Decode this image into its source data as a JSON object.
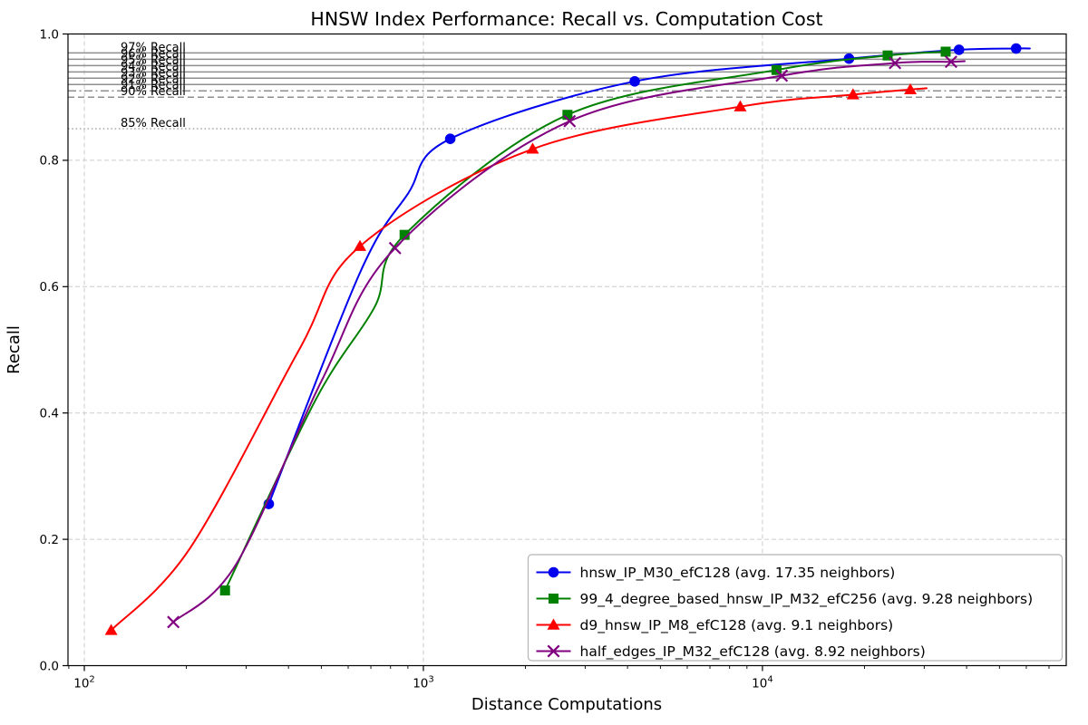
{
  "chart_data": {
    "type": "line",
    "title": "HNSW Index Performance: Recall vs. Computation Cost",
    "xlabel": "Distance Computations",
    "ylabel": "Recall",
    "x_scale": "log",
    "xlim": [
      89.5,
      78700
    ],
    "ylim": [
      0.0,
      1.0
    ],
    "grid": true,
    "legend_location": "lower right",
    "colors": {
      "background": "#ffffff",
      "axis": "#000000",
      "grid": "#cccccc",
      "reference": "#8f8f8f",
      "reference_dotted": "#aaaaaa",
      "text": "#000000",
      "legend_border": "#b5b5b5"
    },
    "x_ticks": [
      {
        "value": 100,
        "base": "10",
        "exp": "2"
      },
      {
        "value": 1000,
        "base": "10",
        "exp": "3"
      },
      {
        "value": 10000,
        "base": "10",
        "exp": "4"
      }
    ],
    "y_ticks": [
      {
        "value": 0.0,
        "label": "0.0"
      },
      {
        "value": 0.2,
        "label": "0.2"
      },
      {
        "value": 0.4,
        "label": "0.4"
      },
      {
        "value": 0.6,
        "label": "0.6"
      },
      {
        "value": 0.8,
        "label": "0.8"
      },
      {
        "value": 1.0,
        "label": "1.0"
      }
    ],
    "reference_lines": [
      {
        "value": 0.97,
        "label": "97% Recall",
        "style": "solid"
      },
      {
        "value": 0.96,
        "label": "96% Recall",
        "style": "solid"
      },
      {
        "value": 0.95,
        "label": "95% Recall",
        "style": "solid"
      },
      {
        "value": 0.94,
        "label": "94% Recall",
        "style": "solid"
      },
      {
        "value": 0.93,
        "label": "93% Recall",
        "style": "solid"
      },
      {
        "value": 0.92,
        "label": "92% Recall",
        "style": "solid"
      },
      {
        "value": 0.91,
        "label": "91% Recall",
        "style": "dashdot"
      },
      {
        "value": 0.9,
        "label": "90% Recall",
        "style": "dashed"
      },
      {
        "value": 0.85,
        "label": "85% Recall",
        "style": "dotted"
      }
    ],
    "series": [
      {
        "name": "hnsw_IP_M30_efC128 (avg. 17.35 neighbors)",
        "color": "#0000ee",
        "marker": "circle",
        "marker_points": [
          [
            350,
            0.256
          ],
          [
            1200,
            0.834
          ],
          [
            4200,
            0.925
          ],
          [
            18000,
            0.961
          ],
          [
            38000,
            0.975
          ],
          [
            56000,
            0.977
          ]
        ],
        "line_vertices": [
          [
            350,
            0.256
          ],
          [
            650,
            0.622
          ],
          [
            900,
            0.747
          ],
          [
            1200,
            0.834
          ],
          [
            4200,
            0.925
          ],
          [
            18000,
            0.961
          ],
          [
            38000,
            0.975
          ],
          [
            56000,
            0.977
          ],
          [
            61500,
            0.977
          ]
        ]
      },
      {
        "name": "99_4_degree_based_hnsw_IP_M32_efC256 (avg. 9.28 neighbors)",
        "color": "#008000",
        "marker": "square",
        "marker_points": [
          [
            260,
            0.119
          ],
          [
            880,
            0.682
          ],
          [
            2660,
            0.872
          ],
          [
            11000,
            0.943
          ],
          [
            23400,
            0.966
          ],
          [
            34700,
            0.972
          ]
        ],
        "line_vertices": [
          [
            260,
            0.119
          ],
          [
            480,
            0.42
          ],
          [
            717,
            0.567
          ],
          [
            880,
            0.682
          ],
          [
            2660,
            0.872
          ],
          [
            11000,
            0.943
          ],
          [
            23400,
            0.966
          ],
          [
            34700,
            0.972
          ]
        ]
      },
      {
        "name": "d9_hnsw_IP_M8_efC128 (avg. 9.1 neighbors)",
        "color": "#ff0000",
        "marker": "triangle",
        "marker_points": [
          [
            120,
            0.056
          ],
          [
            650,
            0.664
          ],
          [
            2100,
            0.818
          ],
          [
            8600,
            0.885
          ],
          [
            18500,
            0.904
          ],
          [
            27300,
            0.912
          ]
        ],
        "line_vertices": [
          [
            120,
            0.056
          ],
          [
            205,
            0.186
          ],
          [
            430,
            0.5
          ],
          [
            650,
            0.664
          ],
          [
            2100,
            0.818
          ],
          [
            8600,
            0.885
          ],
          [
            18500,
            0.904
          ],
          [
            27300,
            0.912
          ],
          [
            30500,
            0.914
          ]
        ]
      },
      {
        "name": "half_edges_IP_M32_efC128 (avg. 8.92 neighbors)",
        "color": "#800080",
        "marker": "x",
        "marker_points": [
          [
            183,
            0.069
          ],
          [
            825,
            0.661
          ],
          [
            2700,
            0.862
          ],
          [
            11400,
            0.934
          ],
          [
            24600,
            0.954
          ],
          [
            36000,
            0.956
          ]
        ],
        "line_vertices": [
          [
            183,
            0.069
          ],
          [
            280,
            0.16
          ],
          [
            500,
            0.45
          ],
          [
            825,
            0.661
          ],
          [
            2700,
            0.862
          ],
          [
            11400,
            0.934
          ],
          [
            24600,
            0.954
          ],
          [
            36000,
            0.956
          ],
          [
            39500,
            0.957
          ]
        ]
      }
    ]
  }
}
